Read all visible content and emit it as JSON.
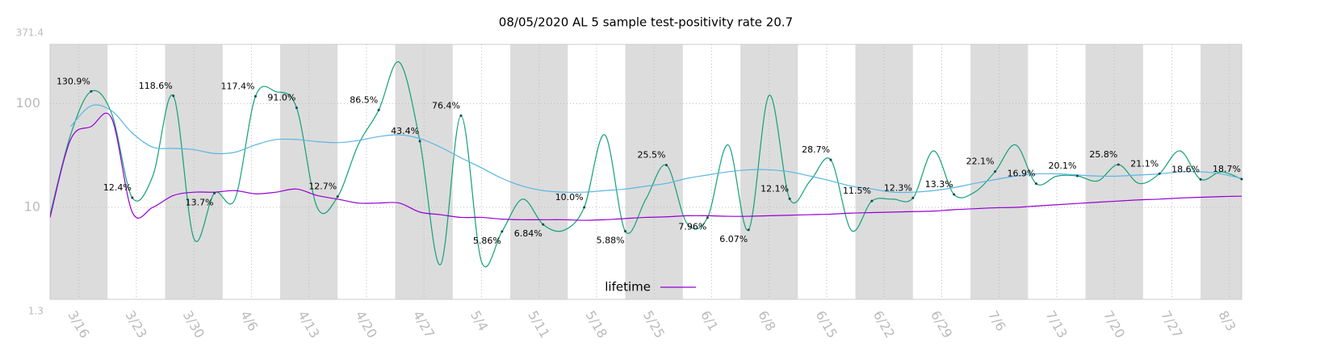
{
  "chart_data": {
    "type": "line",
    "title": "08/05/2020 AL 5 sample test-positivity rate 20.7",
    "log_scale": true,
    "grid": true,
    "legend": "bottom",
    "x": [
      72.5,
      75,
      77.5,
      80,
      82.5,
      85,
      87.5,
      90,
      92.5,
      95,
      97.5,
      100,
      102.5,
      105,
      107.5,
      110,
      112.5,
      115,
      117.5,
      120,
      122.5,
      125,
      127.5,
      130,
      132.5,
      135,
      137.5,
      140,
      142.5,
      145,
      147.5,
      150,
      152.5,
      155,
      157.5,
      160,
      162.5,
      165,
      167.5,
      170,
      172.5,
      175,
      177.5,
      180,
      182.5,
      185,
      187.5,
      190,
      192.5,
      195,
      197.5,
      200,
      202.5,
      205,
      207.5,
      210,
      212.5,
      215,
      217.5
    ],
    "xlim": [
      72.5,
      217.5
    ],
    "xticks": [
      {
        "value": 76,
        "label": "3/16"
      },
      {
        "value": 83,
        "label": "3/23"
      },
      {
        "value": 90,
        "label": "3/30"
      },
      {
        "value": 97,
        "label": "4/6"
      },
      {
        "value": 104,
        "label": "4/13"
      },
      {
        "value": 111,
        "label": "4/20"
      },
      {
        "value": 118,
        "label": "4/27"
      },
      {
        "value": 125,
        "label": "5/4"
      },
      {
        "value": 132,
        "label": "5/11"
      },
      {
        "value": 139,
        "label": "5/18"
      },
      {
        "value": 146,
        "label": "5/25"
      },
      {
        "value": 153,
        "label": "6/1"
      },
      {
        "value": 160,
        "label": "6/8"
      },
      {
        "value": 167,
        "label": "6/15"
      },
      {
        "value": 174,
        "label": "6/22"
      },
      {
        "value": 181,
        "label": "6/29"
      },
      {
        "value": 188,
        "label": "7/6"
      },
      {
        "value": 195,
        "label": "7/13"
      },
      {
        "value": 202,
        "label": "7/20"
      },
      {
        "value": 209,
        "label": "7/27"
      },
      {
        "value": 216,
        "label": "8/3"
      }
    ],
    "ylim": [
      1.3,
      371.4
    ],
    "yticks": [
      1.3,
      10,
      100,
      371.4
    ],
    "series": [
      {
        "color": "#13a07a",
        "values": [
          8.5,
          50,
          130.9,
          80,
          12.4,
          20,
          118.6,
          5,
          13.7,
          12,
          117.4,
          130,
          91.0,
          10,
          12.7,
          40,
          86.5,
          250,
          43.4,
          2.8,
          76.4,
          3,
          5.86,
          12,
          6.84,
          6,
          10.0,
          50,
          5.88,
          12,
          25.5,
          7,
          7.96,
          40,
          6.07,
          120,
          12.1,
          18,
          28.7,
          6,
          11.5,
          12,
          12.3,
          35,
          13.3,
          14,
          22.1,
          40,
          16.9,
          20,
          20.1,
          18,
          25.8,
          17,
          21.1,
          35,
          18.6,
          22,
          18.7
        ],
        "value_labels": [
          null,
          null,
          "130.9%",
          null,
          "12.4%",
          null,
          "118.6%",
          null,
          "13.7%",
          null,
          "117.4%",
          null,
          "91.0%",
          null,
          "12.7%",
          null,
          "86.5%",
          null,
          "43.4%",
          null,
          "76.4%",
          null,
          "5.86%",
          null,
          "6.84%",
          null,
          "10.0%",
          null,
          "5.88%",
          null,
          "25.5%",
          null,
          "7.96%",
          null,
          "6.07%",
          null,
          "12.1%",
          null,
          "28.7%",
          null,
          "11.5%",
          null,
          "12.3%",
          null,
          "13.3%",
          null,
          "22.1%",
          null,
          "16.9%",
          null,
          "20.1%",
          null,
          "25.8%",
          null,
          "21.1%",
          null,
          "18.6%",
          null,
          "18.7%"
        ]
      },
      {
        "color": "#5bb6e2",
        "values": [
          null,
          60,
          95,
          85,
          52,
          38,
          37,
          36,
          33,
          34,
          40,
          45,
          45,
          43,
          42,
          44,
          48,
          50,
          46,
          38,
          30,
          24,
          19,
          16,
          14.5,
          14,
          14,
          14.5,
          15,
          16,
          17,
          19,
          20.5,
          22,
          23,
          23,
          22,
          20,
          18,
          16,
          15,
          14,
          14,
          14.5,
          15.5,
          17,
          18.5,
          20,
          21,
          21,
          20.5,
          20,
          20,
          20.5,
          21,
          22,
          22,
          21,
          19
        ]
      },
      {
        "name": "lifetime",
        "color": "#9400d3",
        "values": [
          8,
          45,
          60,
          72,
          9,
          10,
          13,
          14,
          14,
          14.5,
          13.5,
          14,
          15,
          13,
          12,
          11,
          11,
          11,
          9,
          8.5,
          8,
          8,
          7.7,
          7.6,
          7.6,
          7.6,
          7.5,
          7.6,
          7.8,
          8,
          8.1,
          8.3,
          8.3,
          8.2,
          8.2,
          8.3,
          8.4,
          8.5,
          8.6,
          8.8,
          8.9,
          9,
          9.1,
          9.2,
          9.5,
          9.7,
          9.9,
          10,
          10.3,
          10.6,
          10.9,
          11.2,
          11.5,
          11.8,
          12,
          12.3,
          12.5,
          12.7,
          12.8
        ]
      }
    ]
  }
}
